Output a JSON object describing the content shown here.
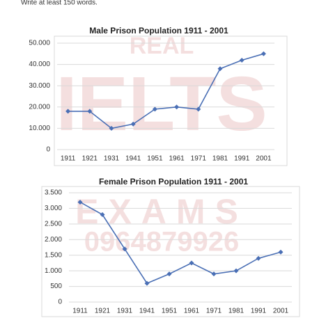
{
  "instruction": "Write at least 150 words.",
  "watermark": [
    "REAL",
    "IELTS",
    "EXAMS",
    "0964879926"
  ],
  "chart_data": [
    {
      "type": "line",
      "title": "Male Prison Population 1911 - 2001",
      "categories": [
        "1911",
        "1921",
        "1931",
        "1941",
        "1951",
        "1961",
        "1971",
        "1981",
        "1991",
        "2001"
      ],
      "values": [
        18000,
        18000,
        10000,
        12000,
        19000,
        20000,
        19000,
        38000,
        42000,
        45000
      ],
      "color": "#4a6fb5",
      "ylim": [
        0,
        50000
      ],
      "yticks": [
        0,
        {
          "value": 10000,
          "label": "10.000"
        },
        {
          "value": 20000,
          "label": "20.000"
        },
        {
          "value": 30000,
          "label": "30.000"
        },
        {
          "value": 40000,
          "label": "40.000"
        },
        {
          "value": 50000,
          "label": "50.000"
        }
      ],
      "grid": true
    },
    {
      "type": "line",
      "title": "Female Prison Population 1911 - 2001",
      "categories": [
        "1911",
        "1921",
        "1931",
        "1941",
        "1951",
        "1961",
        "1971",
        "1981",
        "1991",
        "2001"
      ],
      "values": [
        3200,
        2800,
        1700,
        600,
        900,
        1250,
        900,
        1000,
        1400,
        1600
      ],
      "color": "#4a6fb5",
      "ylim": [
        0,
        3500
      ],
      "yticks": [
        0,
        500,
        {
          "value": 1000,
          "label": "1.000"
        },
        {
          "value": 1500,
          "label": "1.500"
        },
        {
          "value": 2000,
          "label": "2.000"
        },
        {
          "value": 2500,
          "label": "2.500"
        },
        {
          "value": 3000,
          "label": "3.000"
        },
        {
          "value": 3500,
          "label": "3.500"
        }
      ],
      "grid": true
    }
  ]
}
